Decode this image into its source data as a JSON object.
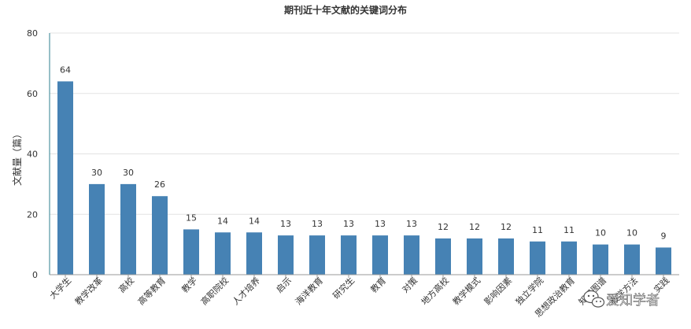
{
  "chart_data": {
    "type": "bar",
    "title": "期刊近十年文献的关键词分布",
    "xlabel": "",
    "ylabel": "文献量（篇）",
    "ylim": [
      0,
      80
    ],
    "yticks": [
      0,
      20,
      40,
      60,
      80
    ],
    "grid": true,
    "bar_color": "#4682b4",
    "categories": [
      "大学生",
      "教学改革",
      "高校",
      "高等教育",
      "教学",
      "高职院校",
      "人才培养",
      "启示",
      "海洋教育",
      "研究生",
      "教育",
      "对策",
      "地方高校",
      "教学模式",
      "影响因素",
      "独立学院",
      "思想政治教育",
      "知识图谱",
      "教学方法",
      "实践"
    ],
    "values": [
      64,
      30,
      30,
      26,
      15,
      14,
      14,
      13,
      13,
      13,
      13,
      13,
      12,
      12,
      12,
      11,
      11,
      10,
      10,
      9
    ]
  },
  "watermark": {
    "text": "爱知学者",
    "icon": "wechat-icon"
  }
}
